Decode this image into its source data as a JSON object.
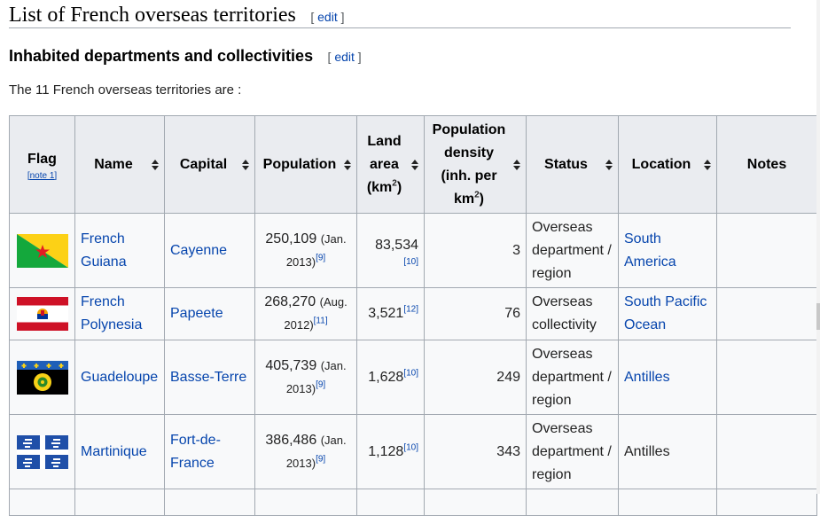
{
  "section": {
    "title": "List of French overseas territories",
    "edit_label": "edit",
    "lbr": "[",
    "rbr": "]"
  },
  "subsection": {
    "title": "Inhabited departments and collectivities",
    "edit_label": "edit"
  },
  "intro_text": "The 11 French overseas territories are :",
  "headers": {
    "flag": "Flag",
    "flag_note": "[note 1]",
    "name": "Name",
    "capital": "Capital",
    "population": "Population",
    "land_area_1": "Land",
    "land_area_2": "area",
    "land_area_3": "(km",
    "land_area_sup": "2",
    "land_area_close": ")",
    "density_1": "Population",
    "density_2": "density",
    "density_3": "(inh. per",
    "density_4": "km",
    "density_sup": "2",
    "density_close": ")",
    "status": "Status",
    "location": "Location",
    "notes": "Notes"
  },
  "rows": [
    {
      "flag_icon": "flag-french-guiana",
      "name_1": "French",
      "name_2": "Guiana",
      "capital_1": "Cayenne",
      "capital_2": "",
      "pop": "250,109",
      "pop_date_1": "(Jan.",
      "pop_date_2": "2013)",
      "pop_ref": "[9]",
      "area": "83,534",
      "area_ref": "[10]",
      "density": "3",
      "status_1": "Overseas",
      "status_2": "department /",
      "status_3": "region",
      "loc_1": "South",
      "loc_2": "America",
      "loc_linked": true
    },
    {
      "flag_icon": "flag-french-polynesia",
      "name_1": "French",
      "name_2": "Polynesia",
      "capital_1": "Papeete",
      "capital_2": "",
      "pop": "268,270",
      "pop_date_1": "(Aug.",
      "pop_date_2": "2012)",
      "pop_ref": "[11]",
      "area": "3,521",
      "area_ref": "[12]",
      "density": "76",
      "status_1": "Overseas",
      "status_2": "collectivity",
      "status_3": "",
      "loc_1": "South Pacific",
      "loc_2": "Ocean",
      "loc_linked": true
    },
    {
      "flag_icon": "flag-guadeloupe",
      "name_1": "Guadeloupe",
      "name_2": "",
      "capital_1": "Basse-Terre",
      "capital_2": "",
      "pop": "405,739",
      "pop_date_1": "(Jan.",
      "pop_date_2": "2013)",
      "pop_ref": "[9]",
      "area": "1,628",
      "area_ref": "[10]",
      "density": "249",
      "status_1": "Overseas",
      "status_2": "department /",
      "status_3": "region",
      "loc_1": "Antilles",
      "loc_2": "",
      "loc_linked": true
    },
    {
      "flag_icon": "flag-martinique",
      "name_1": "Martinique",
      "name_2": "",
      "capital_1": "Fort-de-",
      "capital_2": "France",
      "pop": "386,486",
      "pop_date_1": "(Jan.",
      "pop_date_2": "2013)",
      "pop_ref": "[9]",
      "area": "1,128",
      "area_ref": "[10]",
      "density": "343",
      "status_1": "Overseas",
      "status_2": "department /",
      "status_3": "region",
      "loc_1": "Antilles",
      "loc_2": "",
      "loc_linked": false
    }
  ],
  "colors": {
    "link": "#0645ad",
    "header_bg": "#eaecf0",
    "cell_bg": "#f8f9fa",
    "border": "#a2a9b1"
  }
}
